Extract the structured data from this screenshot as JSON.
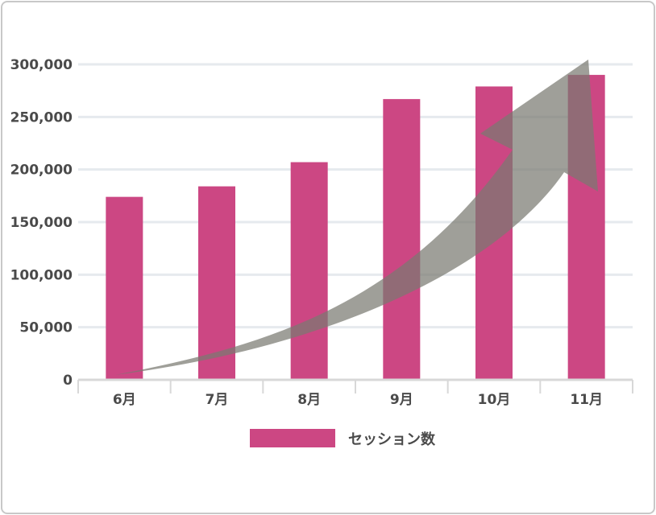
{
  "chart_data": {
    "type": "bar",
    "categories": [
      "6月",
      "7月",
      "8月",
      "9月",
      "10月",
      "11月"
    ],
    "series": [
      {
        "name": "セッション数",
        "values": [
          174000,
          184000,
          207000,
          267000,
          279000,
          290000
        ]
      }
    ],
    "ylim": [
      0,
      300000
    ],
    "yticks": [
      0,
      50000,
      100000,
      150000,
      200000,
      250000,
      300000
    ],
    "ytick_labels": [
      "0",
      "50,000",
      "100,000",
      "150,000",
      "200,000",
      "250,000",
      "300,000"
    ],
    "grid": true,
    "legend": "bottom",
    "annotation": "upward-trend-arrow",
    "colors": {
      "bar": "#cc4783",
      "arrow": "#7a7a72",
      "grid": "#e6eaee",
      "axis": "#d8d8d8",
      "text": "#4a4a4a"
    }
  }
}
